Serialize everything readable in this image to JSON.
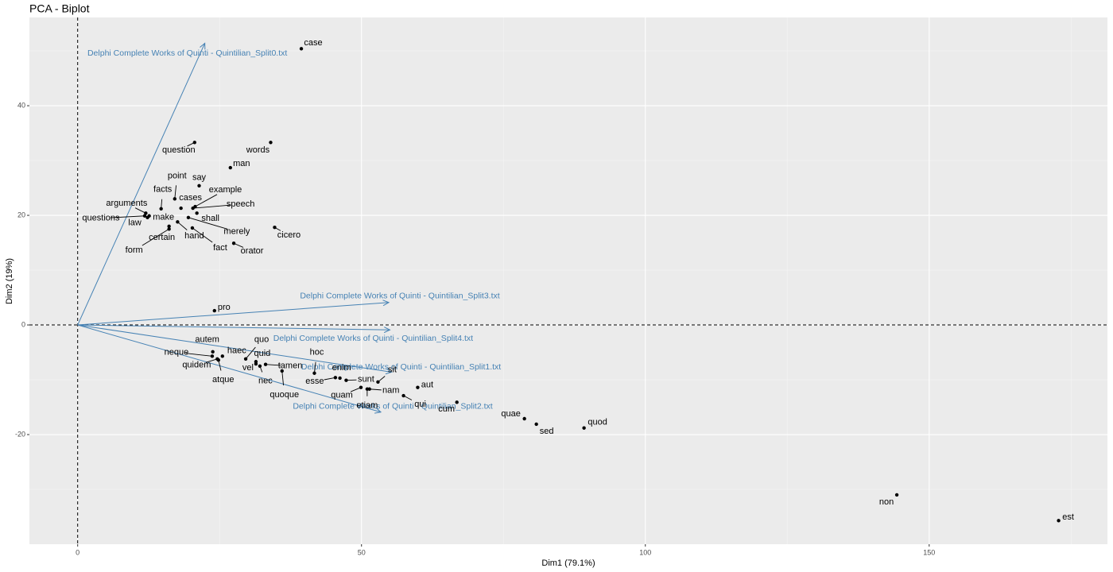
{
  "chart_data": {
    "type": "biplot",
    "title": "PCA - Biplot",
    "x_label": "Dim1 (79.1%)",
    "y_label": "Dim2 (19%)",
    "xlim": [
      -8.5,
      181.4
    ],
    "ylim": [
      -40,
      56.1
    ],
    "xticks": [
      0,
      50,
      100,
      150
    ],
    "yticks": [
      -20,
      0,
      20,
      40
    ],
    "grid": true,
    "points": {
      "color": "#000000",
      "labels": [
        "case",
        "question",
        "words",
        "man",
        "say",
        "point",
        "facts",
        "example",
        "cases",
        "speech",
        "arguments",
        "questions",
        "make",
        "law",
        "shall",
        "merely",
        "hand",
        "cicero",
        "certain",
        "form",
        "fact",
        "orator",
        "pro",
        "autem",
        "haec",
        "neque",
        "quidem",
        "atque",
        "quo",
        "quid",
        "vel",
        "nec",
        "tamen",
        "quoque",
        "hoc",
        "enim",
        "esse",
        "sunt",
        "sit",
        "nam",
        "quam",
        "etiam",
        "qui",
        "aut",
        "cum",
        "quae",
        "sed",
        "quod",
        "non",
        "est"
      ],
      "x": [
        39.4,
        20.6,
        34.0,
        26.9,
        21.4,
        17.1,
        14.7,
        20.7,
        18.2,
        20.3,
        12.0,
        11.8,
        12.6,
        12.3,
        21.0,
        19.5,
        17.6,
        34.7,
        16.1,
        16.1,
        20.2,
        27.5,
        24.1,
        23.8,
        25.5,
        23.7,
        24.6,
        24.8,
        29.6,
        31.4,
        31.4,
        32.1,
        33.1,
        36.0,
        41.7,
        46.2,
        45.4,
        47.3,
        52.9,
        51.4,
        49.9,
        51.0,
        57.4,
        59.9,
        66.8,
        78.7,
        80.8,
        89.2,
        144.3,
        172.8
      ],
      "y": [
        50.4,
        33.3,
        33.3,
        28.7,
        25.4,
        23.0,
        21.2,
        21.6,
        21.3,
        21.3,
        20.4,
        19.9,
        19.9,
        19.6,
        20.4,
        19.6,
        18.8,
        17.8,
        18.0,
        17.5,
        17.7,
        14.9,
        2.6,
        -4.9,
        -5.7,
        -5.7,
        -6.2,
        -6.4,
        -6.2,
        -6.7,
        -7.1,
        -7.5,
        -7.2,
        -8.4,
        -8.8,
        -9.7,
        -9.6,
        -10.1,
        -10.4,
        -11.7,
        -11.4,
        -11.7,
        -12.9,
        -11.4,
        -14.1,
        -17.1,
        -18.1,
        -18.8,
        -31.0,
        -35.7
      ]
    },
    "vectors": {
      "color": "#4682b4",
      "labels": [
        "Delphi Complete Works of Quinti - Quintilian_Split0.txt",
        "Delphi Complete Works of Quinti - Quintilian_Split3.txt",
        "Delphi Complete Works of Quinti - Quintilian_Split4.txt",
        "Delphi Complete Works of Quinti - Quintilian_Split1.txt",
        "Delphi Complete Works of Quinti - Quintilian_Split2.txt"
      ],
      "x": [
        22.4,
        54.8,
        55.0,
        55.3,
        53.4
      ],
      "y": [
        51.4,
        4.1,
        -0.9,
        -8.6,
        -15.9
      ]
    }
  }
}
